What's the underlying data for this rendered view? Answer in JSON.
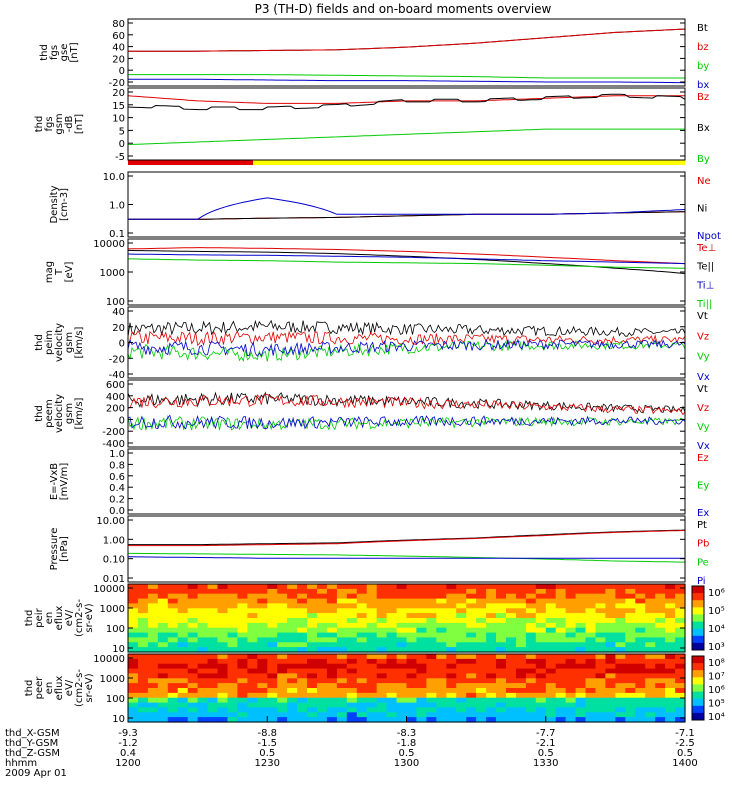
{
  "title": "P3 (TH-D) fields and on-board moments overview",
  "colors": {
    "black": "#000000",
    "red": "#e00000",
    "green": "#00cc00",
    "blue": "#0000cc",
    "yellow": "#ffff00"
  },
  "panels": [
    {
      "ylabel": [
        "thd",
        "fgs",
        "gse",
        "[nT]"
      ],
      "ticks": [
        "80",
        "60",
        "40",
        "20",
        "0",
        "-20"
      ],
      "ylim": [
        -20,
        80
      ],
      "scale": "linear",
      "series": [
        {
          "name": "Bt",
          "color": "#000000"
        },
        {
          "name": "bz",
          "color": "#e00000"
        },
        {
          "name": "by",
          "color": "#00cc00"
        },
        {
          "name": "bx",
          "color": "#0000cc"
        }
      ],
      "data": {
        "Bt": [
          32,
          32,
          33,
          34,
          38,
          44,
          52,
          60,
          65
        ],
        "bz": [
          32,
          32,
          33,
          34,
          38,
          44,
          52,
          60,
          65
        ],
        "by": [
          -3,
          -3,
          -3,
          -4,
          -5,
          -6,
          -8,
          -8,
          -8
        ],
        "bx": [
          -10,
          -10,
          -11,
          -12,
          -12,
          -13,
          -14,
          -14,
          -15
        ]
      }
    },
    {
      "ylabel": [
        "thd",
        "fgs",
        "gsm",
        "-dB",
        "[nT]"
      ],
      "ticks": [
        "20",
        "15",
        "10",
        "5",
        "0",
        "-5"
      ],
      "ylim": [
        -8,
        20
      ],
      "scale": "linear",
      "series": [
        {
          "name": "Bz",
          "color": "#e00000"
        },
        {
          "name": "Bx",
          "color": "#000000"
        },
        {
          "name": "By",
          "color": "#00cc00"
        }
      ],
      "data": {
        "Bz": [
          17,
          15,
          14,
          14,
          15,
          15,
          16,
          17,
          17
        ],
        "Bx": [
          13,
          12,
          12,
          13,
          15,
          15,
          16,
          17,
          16
        ],
        "By": [
          -2,
          -1,
          0,
          1,
          2,
          3,
          4,
          4,
          4
        ]
      }
    },
    {
      "ylabel": [
        "Density",
        "[cm-3]"
      ],
      "ticks": [
        "10.0",
        "1.0",
        "0.1"
      ],
      "ylim": [
        0.1,
        10
      ],
      "scale": "log",
      "series": [
        {
          "name": "Ne",
          "color": "#e00000"
        },
        {
          "name": "Ni",
          "color": "#000000"
        },
        {
          "name": "Npot",
          "color": "#0000cc"
        }
      ],
      "data": {
        "Ne": [
          0.35,
          0.35,
          0.38,
          0.4,
          0.45,
          0.5,
          0.5,
          0.55,
          0.6
        ],
        "Ni": [
          0.35,
          0.35,
          0.38,
          0.4,
          0.45,
          0.5,
          0.5,
          0.55,
          0.6
        ],
        "Npot": [
          0.35,
          0.35,
          1.6,
          0.5,
          0.5,
          0.5,
          0.5,
          0.55,
          0.7
        ]
      }
    },
    {
      "ylabel": [
        "mag",
        "T",
        "[eV]"
      ],
      "ticks": [
        "10000",
        "1000",
        "100"
      ],
      "ylim": [
        100,
        10000
      ],
      "scale": "log",
      "series": [
        {
          "name": "Te⊥",
          "color": "#e00000"
        },
        {
          "name": "Te||",
          "color": "#000000"
        },
        {
          "name": "Ti⊥",
          "color": "#0000cc"
        },
        {
          "name": "Ti||",
          "color": "#00cc00"
        }
      ],
      "data": {
        "Te⊥": [
          5000,
          5500,
          5200,
          4800,
          4200,
          3500,
          2800,
          2200,
          1800
        ],
        "Te||": [
          4500,
          4200,
          4000,
          3600,
          3000,
          2400,
          1800,
          1300,
          900
        ],
        "Ti⊥": [
          3500,
          3300,
          3200,
          3000,
          2800,
          2500,
          2200,
          2000,
          1800
        ],
        "Ti||": [
          2500,
          2300,
          2200,
          2000,
          1900,
          1800,
          1600,
          1400,
          1300
        ]
      }
    },
    {
      "ylabel": [
        "thd",
        "peim",
        "velocity",
        "gsm",
        "[km/s]"
      ],
      "ticks": [
        "40",
        "20",
        "0",
        "-20",
        "-40"
      ],
      "ylim": [
        -40,
        40
      ],
      "scale": "linear",
      "series": [
        {
          "name": "Vt",
          "color": "#000000"
        },
        {
          "name": "Vz",
          "color": "#e00000"
        },
        {
          "name": "Vy",
          "color": "#00cc00"
        },
        {
          "name": "Vx",
          "color": "#0000cc"
        }
      ],
      "data": {
        "Vt": [
          15,
          16,
          18,
          17,
          15,
          14,
          13,
          12,
          11
        ],
        "Vz": [
          5,
          5,
          6,
          5,
          4,
          4,
          3,
          3,
          3
        ],
        "Vy": [
          -10,
          -12,
          -14,
          -10,
          -6,
          -4,
          -3,
          -3,
          -3
        ],
        "Vx": [
          -5,
          -6,
          -8,
          -6,
          -4,
          -3,
          -2,
          -2,
          -2
        ]
      }
    },
    {
      "ylabel": [
        "thd",
        "peem",
        "velocity",
        "gsm",
        "[km/s]"
      ],
      "ticks": [
        "600",
        "400",
        "200",
        "0",
        "-200",
        "-400"
      ],
      "ylim": [
        -400,
        600
      ],
      "scale": "linear",
      "series": [
        {
          "name": "Vt",
          "color": "#000000"
        },
        {
          "name": "Vz",
          "color": "#e00000"
        },
        {
          "name": "Vy",
          "color": "#00cc00"
        },
        {
          "name": "Vx",
          "color": "#0000cc"
        }
      ],
      "data": {
        "Vt": [
          300,
          310,
          320,
          300,
          280,
          250,
          220,
          180,
          150
        ],
        "Vz": [
          280,
          290,
          300,
          280,
          260,
          230,
          200,
          160,
          130
        ],
        "Vy": [
          -40,
          -50,
          -60,
          -50,
          -40,
          -30,
          -20,
          -20,
          -20
        ],
        "Vx": [
          -20,
          -30,
          -40,
          -30,
          -20,
          -10,
          -10,
          -10,
          -10
        ]
      }
    },
    {
      "ylabel": [
        "E=-VxB",
        "[mV/m]"
      ],
      "ticks": [
        "1.0",
        "0.8",
        "0.6",
        "0.4",
        "0.2",
        "0.0"
      ],
      "ylim": [
        0,
        1
      ],
      "scale": "linear",
      "series": [
        {
          "name": "Ez",
          "color": "#e00000"
        },
        {
          "name": "Ey",
          "color": "#00cc00"
        },
        {
          "name": "Ex",
          "color": "#0000cc"
        }
      ],
      "data": {}
    },
    {
      "ylabel": [
        "Pressure",
        "[nPa]"
      ],
      "ticks": [
        "10.00",
        "1.00",
        "0.10",
        "0.01"
      ],
      "ylim": [
        0.01,
        10
      ],
      "scale": "log",
      "series": [
        {
          "name": "Pt",
          "color": "#000000"
        },
        {
          "name": "Pb",
          "color": "#e00000"
        },
        {
          "name": "Pe",
          "color": "#00cc00"
        },
        {
          "name": "Pi",
          "color": "#0000cc"
        }
      ],
      "data": {
        "Pt": [
          0.5,
          0.5,
          0.55,
          0.6,
          0.8,
          1.0,
          1.4,
          1.9,
          2.3
        ],
        "Pb": [
          0.45,
          0.45,
          0.5,
          0.55,
          0.75,
          0.95,
          1.3,
          1.8,
          2.2
        ],
        "Pe": [
          0.2,
          0.19,
          0.18,
          0.17,
          0.15,
          0.13,
          0.11,
          0.09,
          0.08
        ],
        "Pi": [
          0.14,
          0.13,
          0.12,
          0.12,
          0.12,
          0.12,
          0.12,
          0.12,
          0.12
        ]
      }
    },
    {
      "ylabel": [
        "thd",
        "peir",
        "en",
        "eflux",
        "eV/",
        "(cm2-s-",
        "sr-eV)"
      ],
      "ticks": [
        "10000",
        "1000",
        "100",
        "10"
      ],
      "ylim": [
        10,
        20000
      ],
      "scale": "log",
      "colorbar": [
        "10⁶",
        "10⁵",
        "10⁴",
        "10³"
      ]
    },
    {
      "ylabel": [
        "thd",
        "peer",
        "en",
        "eflux",
        "eV/",
        "(cm2-s-",
        "sr-eV)"
      ],
      "ticks": [
        "10000",
        "1000",
        "100",
        "10"
      ],
      "ylim": [
        10,
        20000
      ],
      "scale": "log",
      "colorbar": [
        "10⁸",
        "10⁷",
        "10⁶",
        "10⁵",
        "10⁴"
      ]
    }
  ],
  "footer": {
    "labels": [
      "thd_X-GSM",
      "thd_Y-GSM",
      "thd_Z-GSM",
      "hhmm",
      "2009 Apr 01"
    ],
    "columns": [
      {
        "x": "-9.3",
        "y": "-1.2",
        "z": "0.4",
        "t": "1200"
      },
      {
        "x": "-8.8",
        "y": "-1.5",
        "z": "0.5",
        "t": "1230"
      },
      {
        "x": "-8.3",
        "y": "-1.8",
        "z": "0.5",
        "t": "1300"
      },
      {
        "x": "-7.7",
        "y": "-2.1",
        "z": "0.5",
        "t": "1330"
      },
      {
        "x": "-7.1",
        "y": "-2.5",
        "z": "0.5",
        "t": "1400"
      }
    ]
  }
}
